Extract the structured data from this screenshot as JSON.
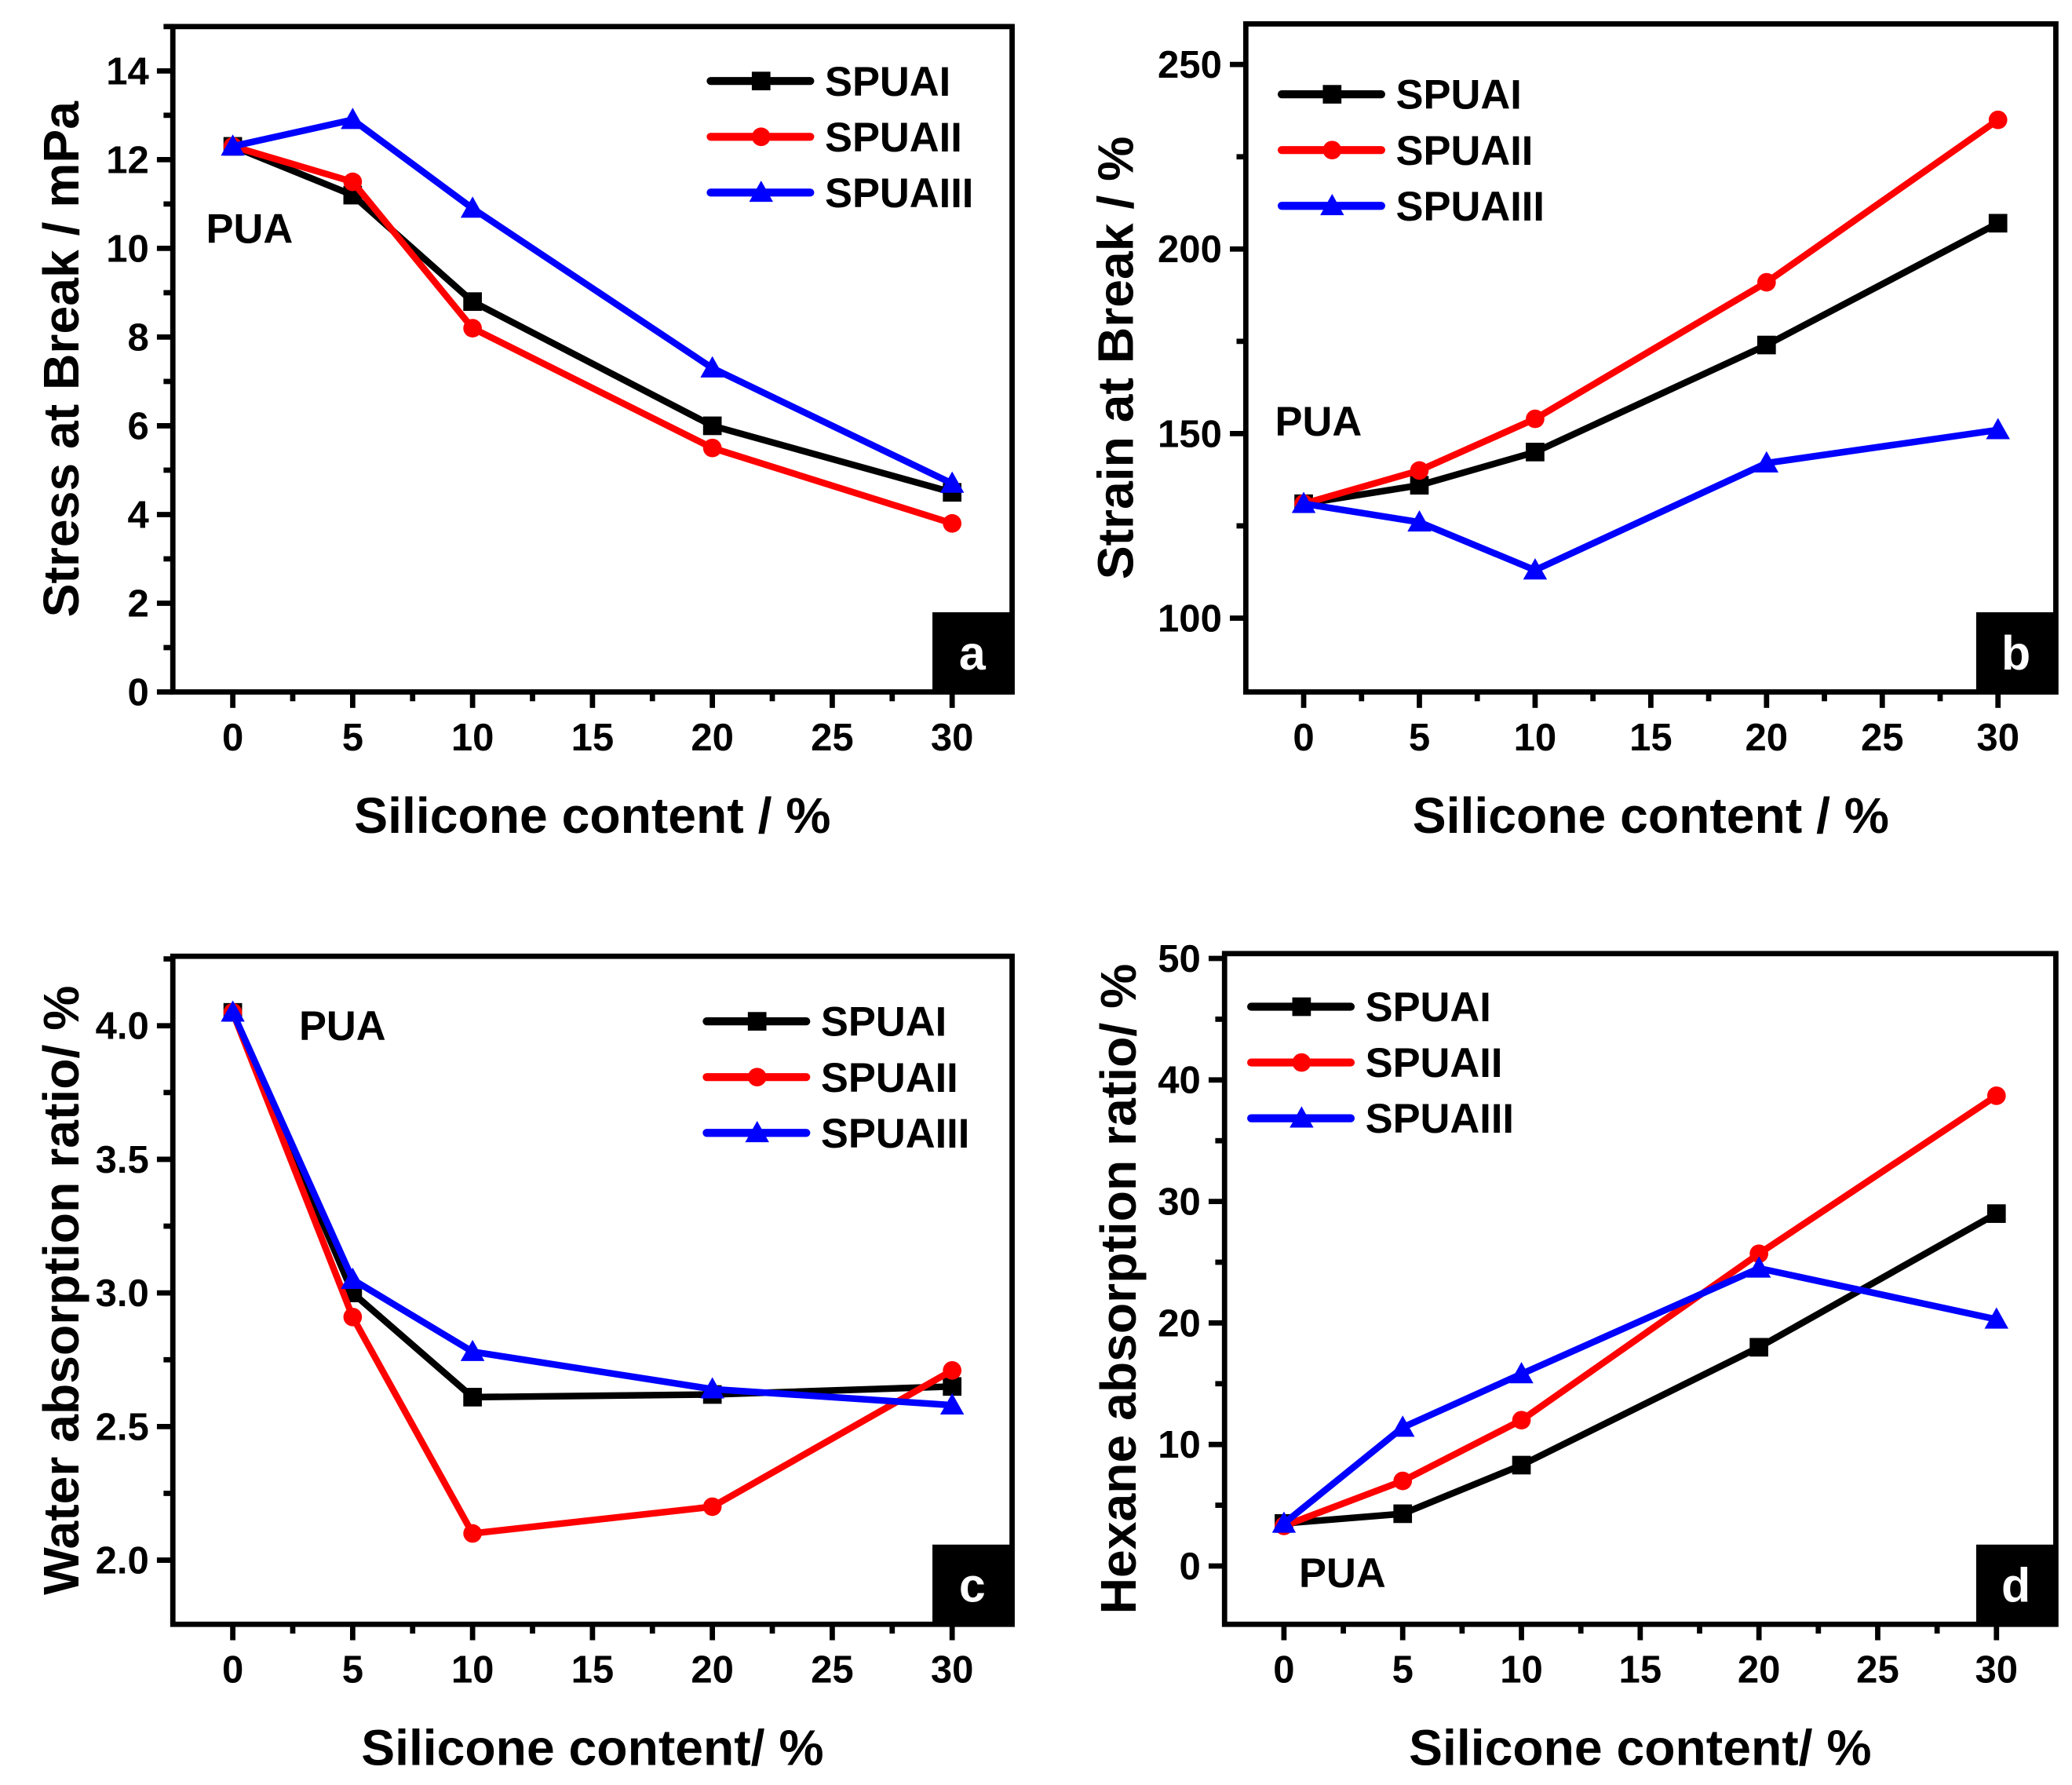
{
  "colors": {
    "SPUAI": "#000000",
    "SPUAII": "#ff0000",
    "SPUAIII": "#0000ff"
  },
  "chart_data": [
    {
      "type": "line",
      "panel_label": "a",
      "title": "",
      "xlabel": "Silicone content / %",
      "ylabel": "Stress at Break / mPa",
      "x": [
        0,
        5,
        10,
        20,
        30
      ],
      "xlim": [
        -2.5,
        32.5
      ],
      "ylim": [
        0,
        15
      ],
      "xticks": [
        0,
        5,
        10,
        15,
        20,
        25,
        30
      ],
      "yticks": [
        0,
        2,
        4,
        6,
        8,
        10,
        12,
        14
      ],
      "annotation": "PUA",
      "legend_position": "top-right",
      "series": [
        {
          "name": "SPUAI",
          "marker": "square",
          "values": [
            12.3,
            11.2,
            8.8,
            6.0,
            4.5
          ]
        },
        {
          "name": "SPUAII",
          "marker": "circle",
          "values": [
            12.3,
            11.5,
            8.2,
            5.5,
            3.8
          ]
        },
        {
          "name": "SPUAIII",
          "marker": "triangle",
          "values": [
            12.3,
            12.9,
            10.9,
            7.3,
            4.7
          ]
        }
      ]
    },
    {
      "type": "line",
      "panel_label": "b",
      "title": "",
      "xlabel": "Silicone content / %",
      "ylabel": "Strain at Break / %",
      "x": [
        0,
        5,
        10,
        20,
        30
      ],
      "xlim": [
        -2.5,
        32.5
      ],
      "ylim": [
        80,
        261
      ],
      "xticks": [
        0,
        5,
        10,
        15,
        20,
        25,
        30
      ],
      "yticks": [
        100,
        150,
        200,
        250
      ],
      "annotation": "PUA",
      "legend_position": "top-left",
      "series": [
        {
          "name": "SPUAI",
          "marker": "square",
          "values": [
            131,
            136,
            145,
            174,
            207
          ]
        },
        {
          "name": "SPUAII",
          "marker": "circle",
          "values": [
            131,
            140,
            154,
            191,
            235
          ]
        },
        {
          "name": "SPUAIII",
          "marker": "triangle",
          "values": [
            131,
            126,
            113,
            142,
            151
          ]
        }
      ]
    },
    {
      "type": "line",
      "panel_label": "c",
      "title": "",
      "xlabel": "Silicone content/ %",
      "ylabel": "Water absorption ratio/ %",
      "x": [
        0,
        5,
        10,
        20,
        30
      ],
      "xlim": [
        -2.5,
        32.5
      ],
      "ylim": [
        1.76,
        4.26
      ],
      "xticks": [
        0,
        5,
        10,
        15,
        20,
        25,
        30
      ],
      "yticks": [
        2.0,
        2.5,
        3.0,
        3.5,
        4.0
      ],
      "annotation": "PUA",
      "legend_position": "top-right",
      "series": [
        {
          "name": "SPUAI",
          "marker": "square",
          "values": [
            4.05,
            3.0,
            2.61,
            2.62,
            2.65
          ]
        },
        {
          "name": "SPUAII",
          "marker": "circle",
          "values": [
            4.05,
            2.91,
            2.1,
            2.2,
            2.71
          ]
        },
        {
          "name": "SPUAIII",
          "marker": "triangle",
          "values": [
            4.05,
            3.05,
            2.78,
            2.64,
            2.58
          ]
        }
      ]
    },
    {
      "type": "line",
      "panel_label": "d",
      "title": "",
      "xlabel": "Silicone content/ %",
      "ylabel": "Hexane absorption ratio/ %",
      "x": [
        0,
        5,
        10,
        20,
        30
      ],
      "xlim": [
        -2.5,
        32.5
      ],
      "ylim": [
        -4.8,
        50.4
      ],
      "xticks": [
        0,
        5,
        10,
        15,
        20,
        25,
        30
      ],
      "yticks": [
        0,
        10,
        20,
        30,
        40,
        50
      ],
      "annotation": "PUA",
      "legend_position": "top-left",
      "series": [
        {
          "name": "SPUAI",
          "marker": "square",
          "values": [
            3.5,
            4.3,
            8.3,
            18.0,
            29.0
          ]
        },
        {
          "name": "SPUAII",
          "marker": "circle",
          "values": [
            3.3,
            7.0,
            12.0,
            25.7,
            38.7
          ]
        },
        {
          "name": "SPUAIII",
          "marker": "triangle",
          "values": [
            3.5,
            11.4,
            15.8,
            24.5,
            20.3
          ]
        }
      ]
    }
  ]
}
